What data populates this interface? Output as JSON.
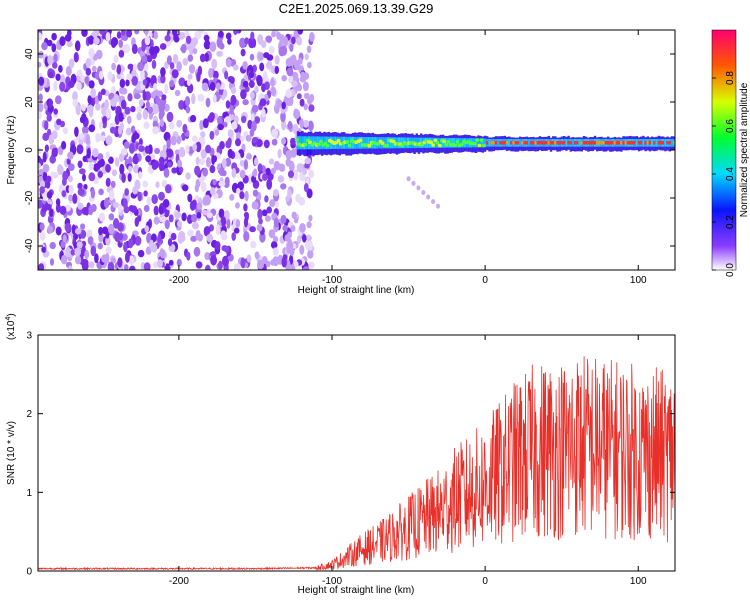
{
  "title": "C2E1.2025.069.13.39.G29",
  "chart_data": [
    {
      "type": "heatmap",
      "name": "spectrogram",
      "xlabel": "Height of straight line (km)",
      "ylabel": "Frequency (Hz)",
      "xlim": [
        -292,
        124
      ],
      "ylim": [
        -50,
        50
      ],
      "xticks": [
        -200,
        -100,
        0,
        100
      ],
      "xtick_labels": [
        "-200",
        "-100",
        "0",
        "100"
      ],
      "yticks": [
        -40,
        -20,
        0,
        20,
        40
      ],
      "ytick_labels": [
        "-40",
        "-20",
        "0",
        "20",
        "40"
      ],
      "colorbar": {
        "label": "Normalized spectral amplitude",
        "range": [
          0,
          1
        ],
        "ticks": [
          0.0,
          0.2,
          0.4,
          0.6,
          0.8
        ],
        "tick_labels": [
          "0.0",
          "0.2",
          "0.4",
          "0.6",
          "0.8"
        ]
      },
      "signal_band": {
        "x_start": -123,
        "x_end": 124,
        "frequency_hz": 3
      }
    },
    {
      "type": "line",
      "name": "snr",
      "xlabel": "Height of straight line (km)",
      "ylabel": "SNR (10 * v/v)",
      "y_scale_label": "(x10",
      "y_scale_exp": "4",
      "xlim": [
        -292,
        124
      ],
      "ylim": [
        0,
        3
      ],
      "xticks": [
        -200,
        -100,
        0,
        100
      ],
      "xtick_labels": [
        "-200",
        "-100",
        "0",
        "100"
      ],
      "yticks": [
        0,
        1,
        2,
        3
      ],
      "ytick_labels": [
        "0",
        "1",
        "2",
        "3"
      ],
      "color": "#e8302a",
      "series": [
        {
          "x": [
            -292,
            -250,
            -200,
            -150,
            -110,
            -100,
            -90,
            -80,
            -70,
            -60,
            -50,
            -40,
            -30,
            -20,
            -10,
            0,
            10,
            20,
            30,
            40,
            50,
            60,
            70,
            80,
            90,
            100,
            110,
            120,
            124
          ],
          "y": [
            0.03,
            0.03,
            0.03,
            0.03,
            0.04,
            0.08,
            0.18,
            0.28,
            0.35,
            0.45,
            0.55,
            0.65,
            0.75,
            0.9,
            1.0,
            1.1,
            1.25,
            1.4,
            1.5,
            1.55,
            1.55,
            1.6,
            1.6,
            1.55,
            1.55,
            1.5,
            1.5,
            1.45,
            1.5
          ]
        }
      ]
    }
  ]
}
